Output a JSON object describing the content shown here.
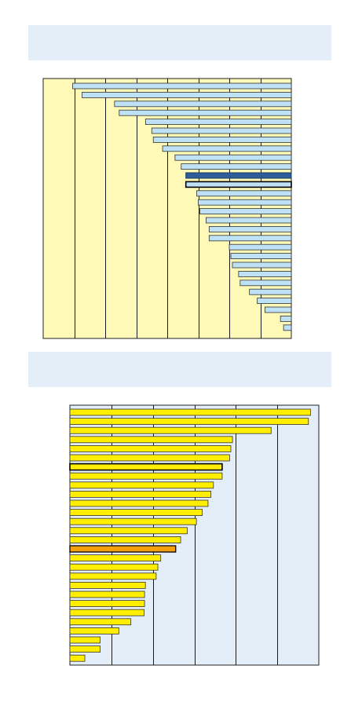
{
  "colors": {
    "chart1_plot_bg": "#fff9b8",
    "chart1_bar": "#bfe1f5",
    "chart1_highlight": "#2e5e97",
    "chart2_plot_bg": "#e4eef9",
    "chart2_bar": "#ffee00",
    "chart2_highlight": "#f2a010",
    "gridline": "#1a1a1a",
    "title_band": "#e4eef9"
  },
  "chart_data": [
    {
      "type": "bar",
      "orientation": "horizontal",
      "title": "",
      "xlim": [
        0,
        8
      ],
      "gridlines": 7,
      "grid": true,
      "values": [
        7.05,
        6.75,
        5.7,
        5.55,
        4.7,
        4.5,
        4.45,
        4.15,
        3.75,
        3.55,
        3.4,
        3.4,
        3.05,
        3.0,
        2.95,
        2.75,
        2.65,
        2.65,
        2.0,
        1.95,
        1.9,
        1.7,
        1.65,
        1.35,
        1.1,
        0.85,
        0.35,
        0.25
      ],
      "highlight_indices": [
        10,
        11
      ],
      "highlight_styles": [
        "dark",
        "outlined"
      ]
    },
    {
      "type": "bar",
      "orientation": "horizontal",
      "title": "",
      "xlim": [
        0,
        6
      ],
      "gridlines": 5,
      "grid": true,
      "values": [
        5.8,
        5.75,
        4.85,
        3.92,
        3.88,
        3.85,
        3.67,
        3.67,
        3.46,
        3.4,
        3.33,
        3.19,
        3.05,
        2.83,
        2.67,
        2.55,
        2.19,
        2.12,
        2.08,
        1.82,
        1.8,
        1.8,
        1.79,
        1.47,
        1.18,
        0.73,
        0.73,
        0.36
      ],
      "highlight_indices": [
        6,
        15
      ],
      "highlight_styles": [
        "outlined",
        "orange"
      ]
    }
  ]
}
